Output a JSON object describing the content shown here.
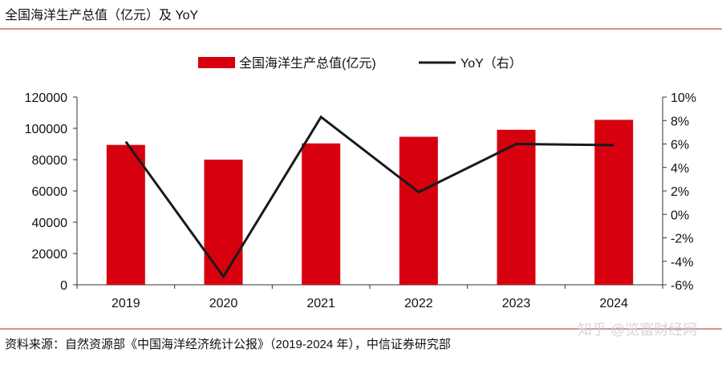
{
  "header": {
    "title": "全国海洋生产总值（亿元）及 YoY"
  },
  "footer": {
    "source": "资料来源：自然资源部《中国海洋经济统计公报》（2019-2024 年），中信证券研究部",
    "watermark": "知乎 @览富财经网"
  },
  "colors": {
    "bar": "#d7000f",
    "line": "#1a1a1a",
    "rule": "#c0504d"
  },
  "chart_data": {
    "type": "bar+line",
    "categories": [
      "2019",
      "2020",
      "2021",
      "2022",
      "2023",
      "2024"
    ],
    "series": [
      {
        "name": "全国海洋生产总值(亿元)",
        "type": "bar",
        "axis": "left",
        "values": [
          89415,
          80010,
          90385,
          94628,
          99097,
          105438
        ]
      },
      {
        "name": "YoY（右）",
        "type": "line",
        "axis": "right",
        "values": [
          6.2,
          -5.3,
          8.3,
          1.9,
          6.0,
          5.9
        ]
      }
    ],
    "left_axis": {
      "ylim": [
        0,
        120000
      ],
      "ticks": [
        "0",
        "20000",
        "40000",
        "60000",
        "80000",
        "100000",
        "120000"
      ]
    },
    "right_axis": {
      "ylim": [
        -6,
        10
      ],
      "ticks": [
        "-6%",
        "-4%",
        "-2%",
        "0%",
        "2%",
        "4%",
        "6%",
        "8%",
        "10%"
      ]
    },
    "legend": "top-center",
    "grid": false
  }
}
